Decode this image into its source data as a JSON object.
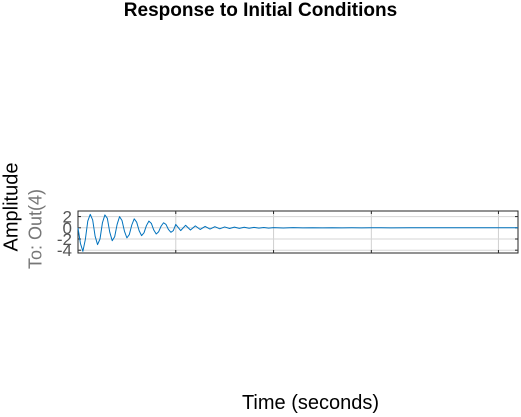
{
  "chart_data": {
    "type": "line",
    "title": "Response to Initial Conditions",
    "xlabel": "Time (seconds)",
    "ylabel": "Amplitude",
    "ysublabel": "To: Out(4)",
    "yticks": [
      "2",
      "0",
      "-2",
      "-4"
    ],
    "ytick_values": [
      2,
      0,
      -2,
      -4
    ],
    "ylim": [
      -4.5,
      3
    ],
    "xlim": [
      0,
      45
    ],
    "grid": true,
    "series": [
      {
        "color": "#0072BD",
        "x": [
          0,
          0.25,
          0.5,
          0.75,
          1.0,
          1.25,
          1.5,
          1.75,
          2.0,
          2.25,
          2.5,
          2.75,
          3.0,
          3.25,
          3.5,
          3.75,
          4.0,
          4.25,
          4.5,
          4.75,
          5.0,
          5.25,
          5.5,
          5.75,
          6.0,
          6.25,
          6.5,
          6.75,
          7.0,
          7.25,
          7.5,
          7.75,
          8.0,
          8.25,
          8.5,
          8.75,
          9.0,
          9.25,
          9.5,
          9.75,
          10.0,
          10.5,
          11.0,
          11.5,
          12.0,
          12.5,
          13.0,
          13.5,
          14.0,
          14.5,
          15.0,
          15.5,
          16.0,
          16.5,
          17.0,
          17.5,
          18.0,
          18.5,
          19.0,
          19.5,
          20.0,
          21.0,
          22.0,
          23.0,
          24.0,
          25.0,
          26.0,
          27.0,
          28.0,
          29.0,
          30.0,
          32.0,
          34.0,
          36.0,
          38.0,
          40.0,
          42.0,
          45.0
        ],
        "y": [
          0,
          -2.8,
          -4.2,
          -2.1,
          1.2,
          2.4,
          1.4,
          -1.5,
          -3.0,
          -2.0,
          0.9,
          2.3,
          1.7,
          -0.8,
          -2.3,
          -1.6,
          0.6,
          2.0,
          1.3,
          -0.6,
          -1.8,
          -1.2,
          0.5,
          1.6,
          1.0,
          -0.5,
          -1.4,
          -0.9,
          0.4,
          1.2,
          0.8,
          -0.4,
          -1.1,
          -0.7,
          0.3,
          0.9,
          0.6,
          -0.3,
          -0.8,
          -0.5,
          0.6,
          -0.5,
          0.45,
          -0.4,
          0.35,
          -0.3,
          0.25,
          -0.22,
          0.2,
          -0.18,
          0.15,
          -0.13,
          0.12,
          -0.1,
          0.09,
          -0.08,
          0.07,
          -0.06,
          0.05,
          -0.05,
          0.04,
          -0.03,
          0.03,
          -0.02,
          0.02,
          -0.015,
          0.01,
          -0.01,
          0.008,
          -0.006,
          0.005,
          -0.003,
          0.002,
          -0.001,
          0.001,
          0,
          0,
          0
        ]
      }
    ]
  }
}
